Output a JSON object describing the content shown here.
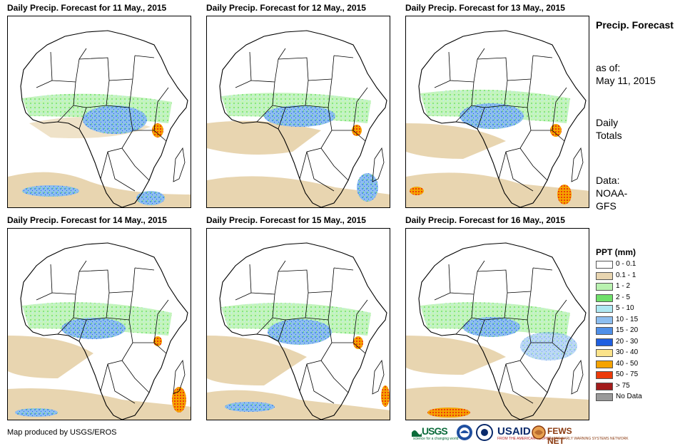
{
  "panels": [
    {
      "title": "Daily Precip. Forecast for 11 May., 2015"
    },
    {
      "title": "Daily Precip. Forecast for 12 May., 2015"
    },
    {
      "title": "Daily Precip. Forecast for 13 May., 2015"
    },
    {
      "title": "Daily Precip. Forecast for 14 May., 2015"
    },
    {
      "title": "Daily Precip. Forecast for 15 May., 2015"
    },
    {
      "title": "Daily Precip. Forecast for 16 May., 2015"
    }
  ],
  "side": {
    "title": "Precip. Forecast",
    "asof_label": "as of:",
    "asof_date": "May 11, 2015",
    "totals": "Daily Totals",
    "data_label": "Data:",
    "data_source": "NOAA-GFS"
  },
  "legend": {
    "title": "PPT (mm)",
    "items": [
      {
        "label": "0 - 0.1",
        "color": "#ffffff"
      },
      {
        "label": "0.1 - 1",
        "color": "#e8d5b0"
      },
      {
        "label": "1 - 2",
        "color": "#b9f2b0"
      },
      {
        "label": "2 - 5",
        "color": "#6fe06a"
      },
      {
        "label": "5 - 10",
        "color": "#aee8f2"
      },
      {
        "label": "10 - 15",
        "color": "#8dbef0"
      },
      {
        "label": "15 - 20",
        "color": "#4f8fe8"
      },
      {
        "label": "20 - 30",
        "color": "#1f5fe0"
      },
      {
        "label": "30 - 40",
        "color": "#fbe38a"
      },
      {
        "label": "40 - 50",
        "color": "#f5a300"
      },
      {
        "label": "50 - 75",
        "color": "#ec3a0a"
      },
      {
        "label": "> 75",
        "color": "#a31c1c"
      },
      {
        "label": "No Data",
        "color": "#9a9a9a"
      }
    ]
  },
  "credit": "Map produced by USGS/EROS",
  "logos": {
    "usgs": "USGS",
    "usgs_tagline": "science for a changing world",
    "usaid": "USAID",
    "usaid_tagline": "FROM THE AMERICAN PEOPLE",
    "fews": "FEWS NET",
    "fews_tagline": "FAMINE EARLY WARNING SYSTEMS NETWORK"
  }
}
